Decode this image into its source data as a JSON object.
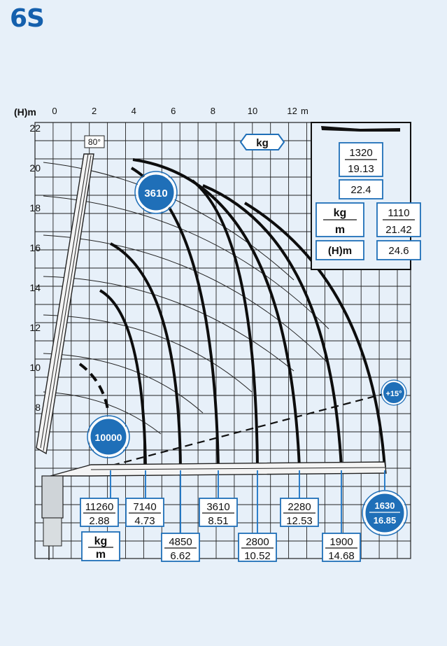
{
  "title": "6S",
  "axes": {
    "y_label": "(H)m",
    "x_unit": "m",
    "x_ticks": [
      "0",
      "2",
      "4",
      "6",
      "8",
      "10",
      "12"
    ],
    "y_ticks": [
      "22",
      "20",
      "18",
      "16",
      "14",
      "12",
      "10",
      "8"
    ]
  },
  "angle_label": "80°",
  "kg_header": "kg",
  "plus_angle_label": "+15°",
  "top_badge": "3610",
  "near_badge": "10000",
  "tip_badge": {
    "load": "1630",
    "reach": "16.85"
  },
  "loads": [
    {
      "kg": "11260",
      "m": "2.88"
    },
    {
      "kg": "7140",
      "m": "4.73"
    },
    {
      "kg": "4850",
      "m": "6.62"
    },
    {
      "kg": "3610",
      "m": "8.51"
    },
    {
      "kg": "2800",
      "m": "10.52"
    },
    {
      "kg": "2280",
      "m": "12.53"
    },
    {
      "kg": "1900",
      "m": "14.68"
    }
  ],
  "legend": {
    "kg": "kg",
    "m": "m"
  },
  "jib_box": {
    "load1": {
      "kg": "1320",
      "m": "19.13"
    },
    "height1": "22.4",
    "load2": {
      "kg": "1110",
      "m": "21.42"
    },
    "height2": "24.6",
    "kg_label": "kg",
    "m_label": "m",
    "h_label": "(H)m"
  },
  "colors": {
    "badge": "#1f6fb8",
    "title": "#1560ad",
    "background": "#e7f0f9",
    "ink": "#111111"
  }
}
